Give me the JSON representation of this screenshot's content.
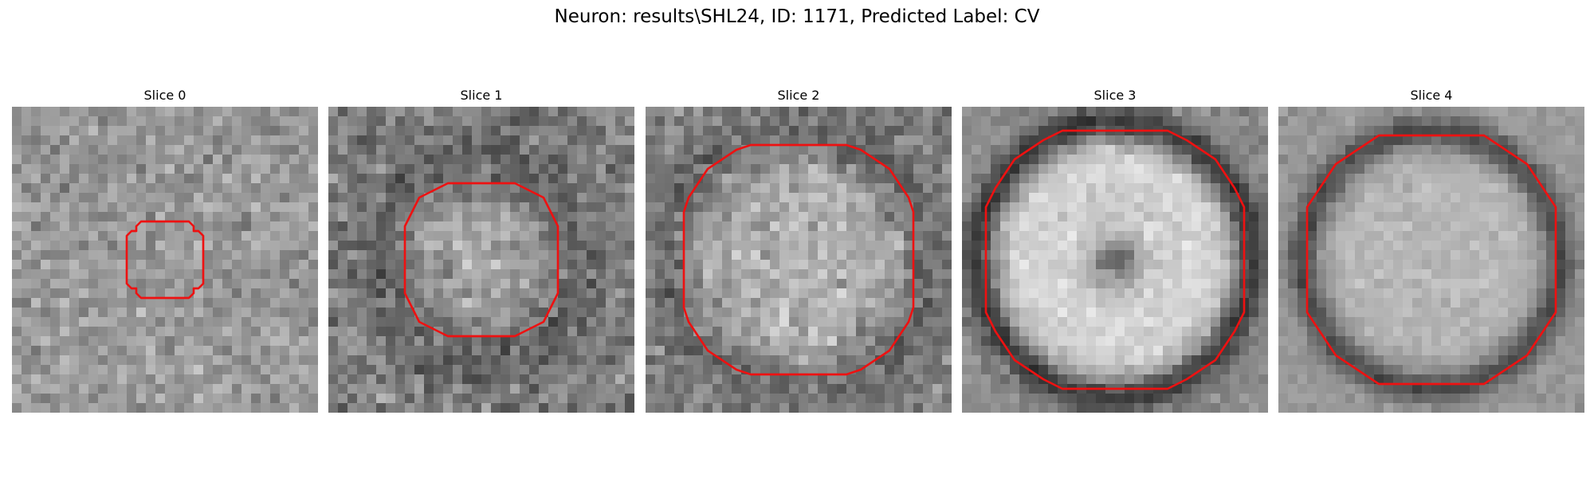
{
  "figure": {
    "title": "Neuron: results\\SHL24, ID: 1171, Predicted Label: CV"
  },
  "panels": [
    {
      "title": "Slice 0"
    },
    {
      "title": "Slice 1"
    },
    {
      "title": "Slice 2"
    },
    {
      "title": "Slice 3"
    },
    {
      "title": "Slice 4"
    }
  ],
  "colors": {
    "contour": "#ee1111",
    "background": "#ffffff"
  }
}
